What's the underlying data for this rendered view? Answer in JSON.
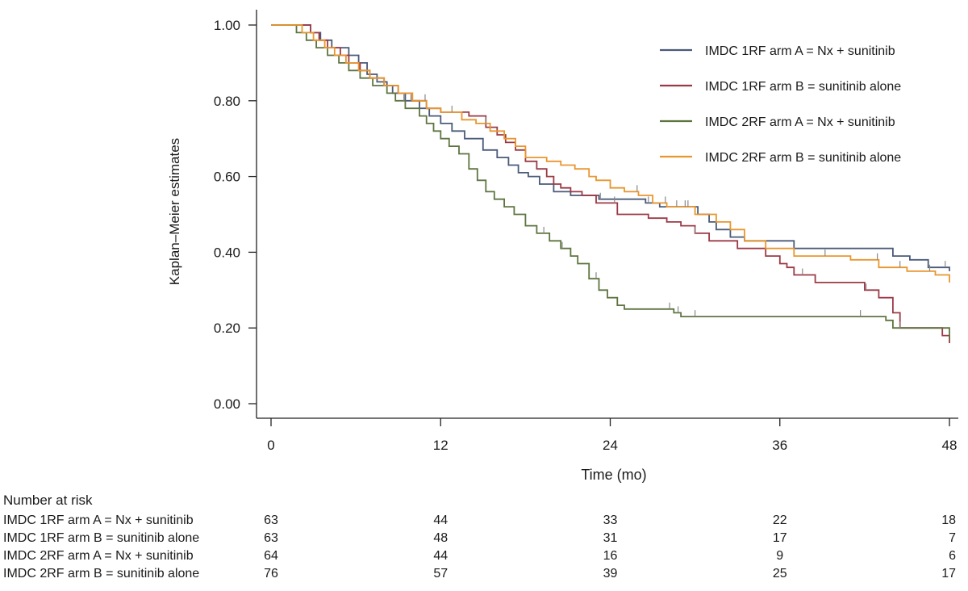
{
  "chart_data": {
    "type": "line",
    "step": true,
    "xlabel": "Time (mo)",
    "ylabel": "Kaplan–Meier estimates",
    "xlim": [
      0,
      48
    ],
    "ylim": [
      0,
      1
    ],
    "xticks": [
      0,
      12,
      24,
      36,
      48
    ],
    "yticks": [
      0,
      0.2,
      0.4,
      0.6,
      0.8,
      1.0
    ],
    "ytick_labels": [
      "0.00",
      "0.20",
      "0.40",
      "0.60",
      "0.80",
      "1.00"
    ],
    "grid": false,
    "legend_position": "top-right",
    "series": [
      {
        "name": "IMDC 1RF arm A = Nx + sunitinib",
        "color": "#4a5a78",
        "x": [
          0,
          2.8,
          3.5,
          4.3,
          5.5,
          6.2,
          6.8,
          7.5,
          8.2,
          8.6,
          9.5,
          10.5,
          11.2,
          12.0,
          12.8,
          13.7,
          15.0,
          16.0,
          16.8,
          17.5,
          18.2,
          19.0,
          20.0,
          21.2,
          22.5,
          23.2,
          23.8,
          25.0,
          26.5,
          27.5,
          28.0,
          28.8,
          30.2,
          31.0,
          31.5,
          32.5,
          33.5,
          37.0,
          44.0,
          45.2,
          46.5,
          48.0
        ],
        "y": [
          1.0,
          0.98,
          0.96,
          0.94,
          0.92,
          0.9,
          0.87,
          0.85,
          0.84,
          0.82,
          0.8,
          0.78,
          0.76,
          0.74,
          0.72,
          0.7,
          0.67,
          0.65,
          0.63,
          0.61,
          0.6,
          0.58,
          0.56,
          0.55,
          0.55,
          0.54,
          0.54,
          0.54,
          0.53,
          0.52,
          0.52,
          0.52,
          0.5,
          0.48,
          0.46,
          0.44,
          0.43,
          0.41,
          0.39,
          0.38,
          0.36,
          0.35
        ],
        "censor_x": [
          9.9,
          23.3,
          26.7,
          28.7,
          29.3,
          47.7
        ]
      },
      {
        "name": "IMDC 1RF arm B = sunitinib alone",
        "color": "#9b3a46",
        "x": [
          0,
          2.8,
          3.4,
          4.0,
          4.9,
          5.5,
          6.3,
          7.0,
          8.0,
          9.0,
          10.0,
          11.0,
          12.0,
          13.0,
          14.0,
          15.2,
          16.0,
          16.6,
          17.3,
          18.0,
          18.8,
          19.5,
          20.0,
          20.5,
          21.2,
          22.0,
          23.0,
          24.5,
          25.5,
          26.7,
          28.0,
          29.0,
          30.0,
          31.0,
          33.0,
          35.0,
          36.0,
          36.5,
          37.0,
          38.5,
          42.0,
          43.0,
          44.0,
          44.5,
          47.5,
          48.0
        ],
        "y": [
          1.0,
          0.98,
          0.96,
          0.94,
          0.92,
          0.9,
          0.88,
          0.86,
          0.84,
          0.82,
          0.8,
          0.78,
          0.77,
          0.77,
          0.76,
          0.73,
          0.71,
          0.69,
          0.67,
          0.64,
          0.62,
          0.6,
          0.58,
          0.57,
          0.56,
          0.55,
          0.53,
          0.5,
          0.5,
          0.49,
          0.48,
          0.47,
          0.45,
          0.43,
          0.41,
          0.39,
          0.37,
          0.36,
          0.34,
          0.32,
          0.3,
          0.28,
          0.24,
          0.2,
          0.18,
          0.16
        ],
        "censor_x": [
          10.9,
          24.3,
          30.0,
          37.6,
          42.1,
          44.5
        ]
      },
      {
        "name": "IMDC 2RF arm A = Nx + sunitinib",
        "color": "#5e7440",
        "x": [
          0,
          1.8,
          2.5,
          3.2,
          4.0,
          4.8,
          5.5,
          6.3,
          7.2,
          8.2,
          8.8,
          9.5,
          10.5,
          11.0,
          11.5,
          12.0,
          12.6,
          13.3,
          14.0,
          14.6,
          15.2,
          15.8,
          16.5,
          17.2,
          18.0,
          18.8,
          19.7,
          20.5,
          21.2,
          21.7,
          22.5,
          23.2,
          23.8,
          24.5,
          25.0,
          26.0,
          27.0,
          28.0,
          28.5,
          29.0,
          43.5,
          44.0,
          48.0
        ],
        "y": [
          1.0,
          0.98,
          0.96,
          0.94,
          0.92,
          0.9,
          0.88,
          0.86,
          0.84,
          0.82,
          0.8,
          0.78,
          0.76,
          0.74,
          0.72,
          0.7,
          0.68,
          0.66,
          0.62,
          0.59,
          0.56,
          0.54,
          0.52,
          0.5,
          0.47,
          0.45,
          0.43,
          0.41,
          0.39,
          0.37,
          0.33,
          0.3,
          0.28,
          0.26,
          0.25,
          0.25,
          0.25,
          0.25,
          0.24,
          0.23,
          0.22,
          0.2,
          0.17
        ],
        "censor_x": [
          9.4,
          19.3,
          20.6,
          23.0,
          28.2,
          28.8,
          30.0,
          41.7
        ]
      },
      {
        "name": "IMDC 2RF arm B = sunitinib alone",
        "color": "#e8962e",
        "x": [
          0,
          2.2,
          3.0,
          3.8,
          4.5,
          5.3,
          6.2,
          7.0,
          8.0,
          9.0,
          10.0,
          11.0,
          12.0,
          13.5,
          14.5,
          15.5,
          16.5,
          17.3,
          18.0,
          19.5,
          20.5,
          21.5,
          22.5,
          23.0,
          24.0,
          25.0,
          26.0,
          27.0,
          28.0,
          30.0,
          31.5,
          32.5,
          33.5,
          35.0,
          37.0,
          41.0,
          43.0,
          45.0,
          47.0,
          48.0
        ],
        "y": [
          1.0,
          0.98,
          0.96,
          0.94,
          0.92,
          0.9,
          0.88,
          0.86,
          0.84,
          0.82,
          0.8,
          0.78,
          0.77,
          0.75,
          0.74,
          0.72,
          0.7,
          0.68,
          0.65,
          0.64,
          0.63,
          0.62,
          0.6,
          0.59,
          0.57,
          0.56,
          0.55,
          0.53,
          0.52,
          0.5,
          0.48,
          0.46,
          0.43,
          0.41,
          0.39,
          0.38,
          0.36,
          0.35,
          0.34,
          0.32
        ],
        "censor_x": [
          12.8,
          15.2,
          25.9,
          27.9,
          29.5,
          39.2,
          42.9,
          44.5,
          46.6
        ]
      }
    ]
  },
  "risk_table": {
    "title": "Number at risk",
    "rows": [
      {
        "label": "IMDC 1RF arm A = Nx + sunitinib",
        "values": [
          "63",
          "44",
          "33",
          "22",
          "18"
        ]
      },
      {
        "label": "IMDC 1RF arm B = sunitinib alone",
        "values": [
          "63",
          "48",
          "31",
          "17",
          "7"
        ]
      },
      {
        "label": "IMDC 2RF arm A = Nx + sunitinib",
        "values": [
          "64",
          "44",
          "16",
          "9",
          "6"
        ]
      },
      {
        "label": "IMDC 2RF arm B = sunitinib alone",
        "values": [
          "76",
          "57",
          "39",
          "25",
          "17"
        ]
      }
    ]
  }
}
